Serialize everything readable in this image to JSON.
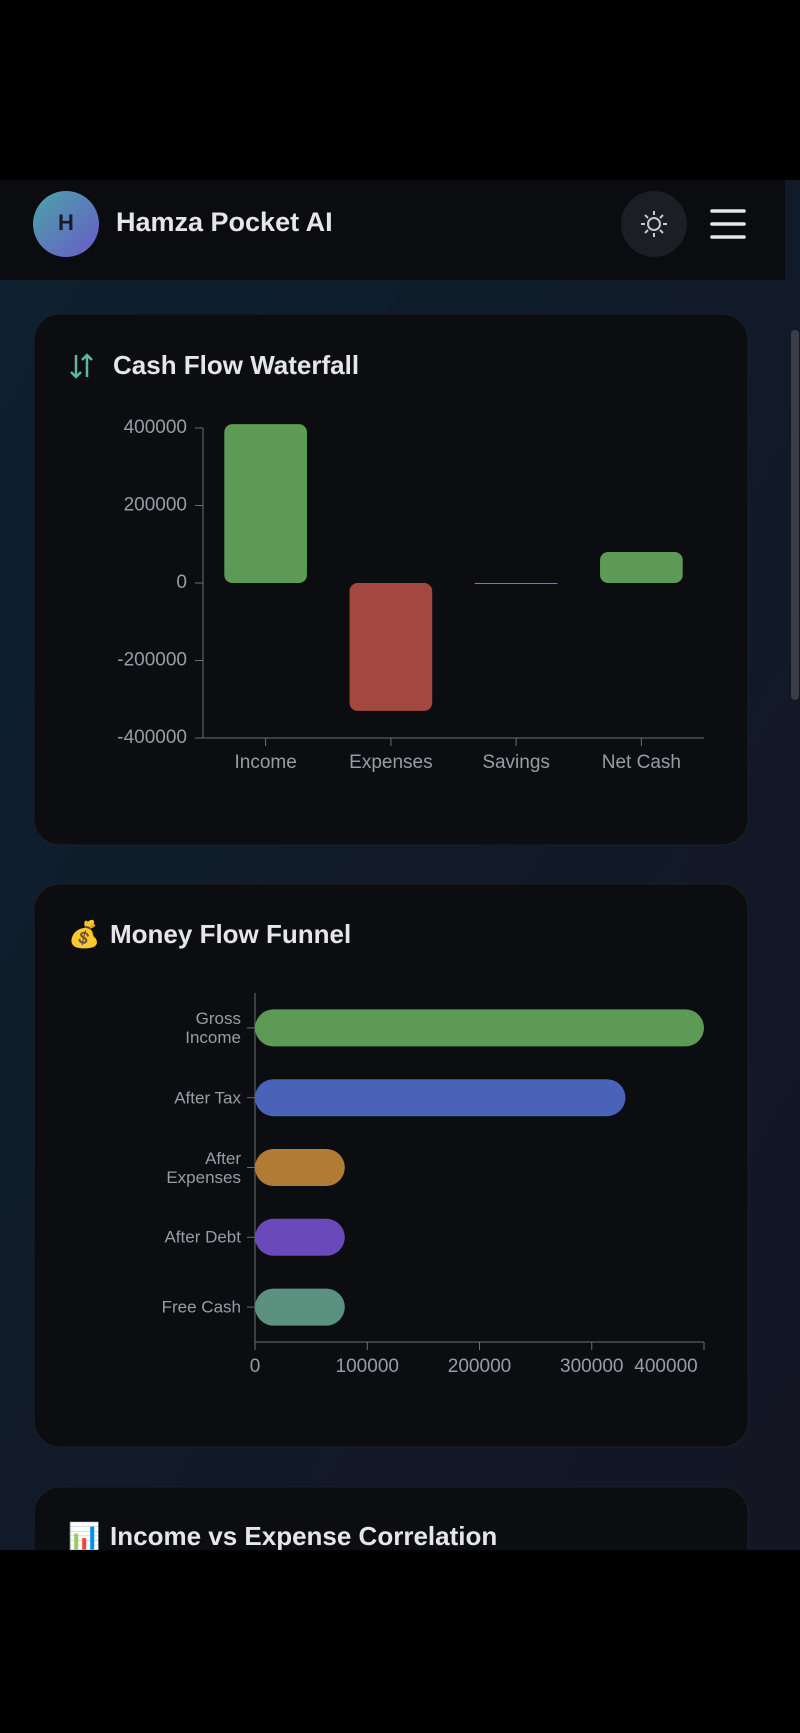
{
  "header": {
    "avatar": "H",
    "title": "Hamza Pocket AI"
  },
  "chart_data": [
    {
      "type": "bar",
      "orientation": "vertical",
      "title": "Cash Flow Waterfall",
      "categories": [
        "Income",
        "Expenses",
        "Savings",
        "Net Cash"
      ],
      "values": [
        410000,
        -330000,
        0,
        80000
      ],
      "colors": [
        "#5c9a56",
        "#a3473f",
        "#5c9a56",
        "#5c9a56"
      ],
      "ylim": [
        -400000,
        400000
      ],
      "yticks": [
        -400000,
        -200000,
        0,
        200000,
        400000
      ]
    },
    {
      "type": "bar",
      "orientation": "horizontal",
      "title": "Money Flow Funnel",
      "icon": "💰",
      "categories": [
        "Gross Income",
        "After Tax",
        "After Expenses",
        "After Debt",
        "Free Cash"
      ],
      "values": [
        400000,
        330000,
        80000,
        80000,
        80000
      ],
      "colors": [
        "#5c9a56",
        "#4a63b8",
        "#b17b36",
        "#6a4abb",
        "#5a917f"
      ],
      "xlim": [
        0,
        400000
      ],
      "xticks": [
        0,
        100000,
        200000,
        300000,
        400000
      ]
    }
  ],
  "next_section": {
    "title": "Income vs Expense Correlation",
    "icon": "📊"
  }
}
